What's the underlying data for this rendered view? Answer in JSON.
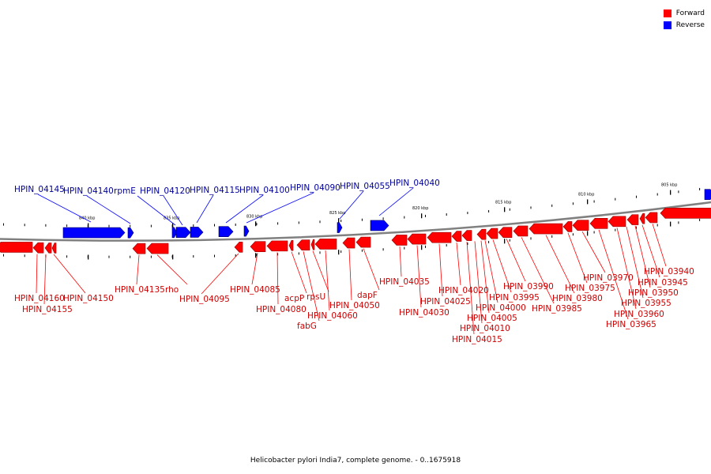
{
  "legend": {
    "forward": {
      "label": "Forward",
      "color": "#ff0000"
    },
    "reverse": {
      "label": "Reverse",
      "color": "#0000ff"
    }
  },
  "caption": "Helicobacter pylori India7, complete genome. - 0..1675918",
  "colors": {
    "forward_text": "#cc0000",
    "reverse_text": "#000099",
    "backbone": "#808080"
  },
  "scale_ticks": [
    {
      "label": "805 kbp"
    },
    {
      "label": "810 kbp"
    },
    {
      "label": "815 kbp"
    },
    {
      "label": "820 kbp"
    },
    {
      "label": "825 kbp"
    },
    {
      "label": "830 kbp"
    },
    {
      "label": "835 kbp"
    },
    {
      "label": "840 kbp"
    }
  ],
  "reverse_genes": [
    {
      "label": "HPIN_04145"
    },
    {
      "label": "HPIN_04140"
    },
    {
      "label": "rpmE"
    },
    {
      "label": "HPIN_04120"
    },
    {
      "label": "HPIN_04115"
    },
    {
      "label": "HPIN_04100"
    },
    {
      "label": "HPIN_04090"
    },
    {
      "label": "HPIN_04055"
    },
    {
      "label": "HPIN_04040"
    }
  ],
  "forward_genes": [
    {
      "label": "HPIN_04160"
    },
    {
      "label": "HPIN_04155"
    },
    {
      "label": "HPIN_04150"
    },
    {
      "label": "HPIN_04135"
    },
    {
      "label": "rho"
    },
    {
      "label": "HPIN_04095"
    },
    {
      "label": "HPIN_04085"
    },
    {
      "label": "HPIN_04080"
    },
    {
      "label": "acpP"
    },
    {
      "label": "fabG"
    },
    {
      "label": "rpsU"
    },
    {
      "label": "HPIN_04060"
    },
    {
      "label": "HPIN_04050"
    },
    {
      "label": "dapF"
    },
    {
      "label": "HPIN_04035"
    },
    {
      "label": "HPIN_04030"
    },
    {
      "label": "HPIN_04025"
    },
    {
      "label": "HPIN_04020"
    },
    {
      "label": "HPIN_04015"
    },
    {
      "label": "HPIN_04010"
    },
    {
      "label": "HPIN_04005"
    },
    {
      "label": "HPIN_04000"
    },
    {
      "label": "HPIN_03995"
    },
    {
      "label": "HPIN_03990"
    },
    {
      "label": "HPIN_03985"
    },
    {
      "label": "HPIN_03980"
    },
    {
      "label": "HPIN_03975"
    },
    {
      "label": "HPIN_03970"
    },
    {
      "label": "HPIN_03965"
    },
    {
      "label": "HPIN_03960"
    },
    {
      "label": "HPIN_03955"
    },
    {
      "label": "HPIN_03950"
    },
    {
      "label": "HPIN_03945"
    },
    {
      "label": "HPIN_03940"
    }
  ]
}
